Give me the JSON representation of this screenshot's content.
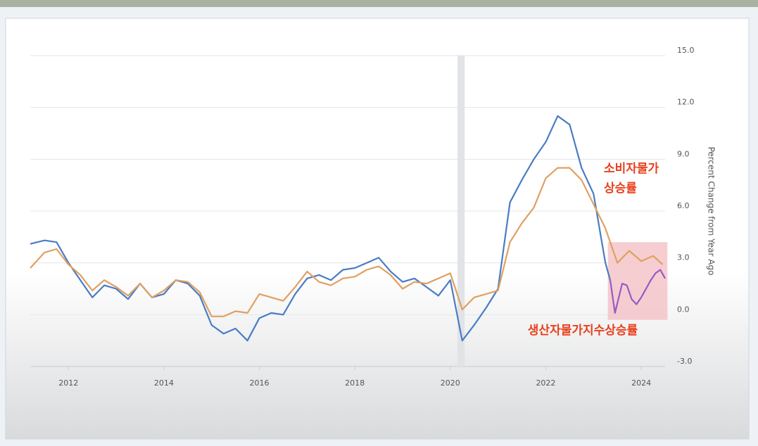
{
  "chart_data": {
    "type": "line",
    "y_axis_label": "Percent Change from Year Ago",
    "annotations": [
      {
        "text": "소비자물가",
        "color": "#e8401c"
      },
      {
        "text": "상승률",
        "color": "#e8401c"
      },
      {
        "text": "생산자물가지수상승률",
        "color": "#e8401c"
      }
    ],
    "xlim": [
      2011.2,
      2024.5
    ],
    "xticks": [
      2012,
      2014,
      2016,
      2018,
      2020,
      2022,
      2024
    ],
    "ylim": [
      -3,
      15
    ],
    "yticks": [
      {
        "value": -3,
        "label": "-3.0"
      },
      {
        "value": 0,
        "label": "0.0"
      },
      {
        "value": 3,
        "label": "3.0"
      },
      {
        "value": 6,
        "label": "6.0"
      },
      {
        "value": 9,
        "label": "9.0"
      },
      {
        "value": 12,
        "label": "12.0"
      },
      {
        "value": 15,
        "label": "15.0"
      }
    ],
    "grid": true,
    "recession_band": [
      2020.15,
      2020.3
    ],
    "highlight": {
      "x": [
        2023.3,
        2024.55
      ],
      "y": [
        -0.3,
        4.2
      ],
      "color": "#f4c2c6"
    },
    "series": [
      {
        "color": "#4a7cc4",
        "x": [
          2011.2,
          2011.5,
          2011.75,
          2012.0,
          2012.25,
          2012.5,
          2012.75,
          2013.0,
          2013.25,
          2013.5,
          2013.75,
          2014.0,
          2014.25,
          2014.5,
          2014.75,
          2015.0,
          2015.25,
          2015.5,
          2015.75,
          2016.0,
          2016.25,
          2016.5,
          2016.75,
          2017.0,
          2017.25,
          2017.5,
          2017.75,
          2018.0,
          2018.25,
          2018.5,
          2018.75,
          2019.0,
          2019.25,
          2019.5,
          2019.75,
          2020.0,
          2020.25,
          2020.5,
          2020.75,
          2021.0,
          2021.25,
          2021.5,
          2021.75,
          2022.0,
          2022.25,
          2022.5,
          2022.75,
          2023.0,
          2023.25,
          2023.35
        ],
        "values": [
          4.1,
          4.3,
          4.2,
          3.0,
          2.0,
          1.0,
          1.7,
          1.5,
          0.9,
          1.8,
          1.0,
          1.2,
          2.0,
          1.8,
          1.1,
          -0.6,
          -1.1,
          -0.8,
          -1.5,
          -0.2,
          0.1,
          0.0,
          1.2,
          2.1,
          2.3,
          2.0,
          2.6,
          2.7,
          3.0,
          3.3,
          2.5,
          1.9,
          2.1,
          1.6,
          1.1,
          2.0,
          -1.5,
          -0.6,
          0.4,
          1.5,
          6.5,
          7.8,
          9.0,
          10.0,
          11.5,
          11.0,
          8.5,
          7.0,
          3.0,
          2.0
        ]
      },
      {
        "color": "#9a58c8",
        "x": [
          2023.35,
          2023.45,
          2023.6,
          2023.7,
          2023.8,
          2023.9,
          2024.0,
          2024.1,
          2024.2,
          2024.3,
          2024.4,
          2024.5
        ],
        "values": [
          2.0,
          0.1,
          1.8,
          1.7,
          0.9,
          0.6,
          1.0,
          1.5,
          2.0,
          2.4,
          2.6,
          2.1
        ]
      },
      {
        "color": "#e0a060",
        "x": [
          2011.2,
          2011.5,
          2011.75,
          2012.0,
          2012.25,
          2012.5,
          2012.75,
          2013.0,
          2013.25,
          2013.5,
          2013.75,
          2014.0,
          2014.25,
          2014.5,
          2014.75,
          2015.0,
          2015.25,
          2015.5,
          2015.75,
          2016.0,
          2016.25,
          2016.5,
          2016.75,
          2017.0,
          2017.25,
          2017.5,
          2017.75,
          2018.0,
          2018.25,
          2018.5,
          2018.75,
          2019.0,
          2019.25,
          2019.5,
          2019.75,
          2020.0,
          2020.25,
          2020.5,
          2020.75,
          2021.0,
          2021.25,
          2021.5,
          2021.75,
          2022.0,
          2022.25,
          2022.5,
          2022.75,
          2023.0,
          2023.25,
          2023.5,
          2023.75,
          2024.0,
          2024.25,
          2024.45
        ],
        "values": [
          2.7,
          3.6,
          3.8,
          2.9,
          2.3,
          1.4,
          2.0,
          1.6,
          1.1,
          1.8,
          1.0,
          1.4,
          2.0,
          1.9,
          1.3,
          -0.1,
          -0.1,
          0.2,
          0.1,
          1.2,
          1.0,
          0.8,
          1.6,
          2.5,
          1.9,
          1.7,
          2.1,
          2.2,
          2.6,
          2.8,
          2.3,
          1.5,
          1.9,
          1.8,
          2.1,
          2.4,
          0.3,
          1.0,
          1.2,
          1.4,
          4.2,
          5.3,
          6.2,
          7.9,
          8.5,
          8.5,
          7.8,
          6.4,
          5.0,
          3.0,
          3.7,
          3.1,
          3.4,
          2.9
        ]
      }
    ]
  }
}
